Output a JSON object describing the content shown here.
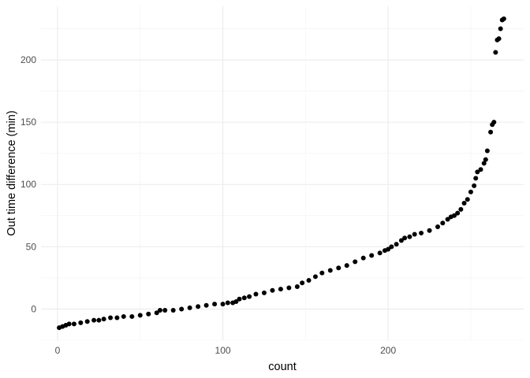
{
  "chart_data": {
    "type": "scatter",
    "title": "",
    "xlabel": "count",
    "ylabel": "Out time difference (min)",
    "xlim": [
      -10,
      282
    ],
    "ylim": [
      -25,
      243
    ],
    "x_ticks": [
      0,
      100,
      200
    ],
    "y_ticks": [
      0,
      50,
      100,
      150,
      200
    ],
    "x_tick_labels": [
      "0",
      "100",
      "200"
    ],
    "y_tick_labels": [
      "0",
      "50",
      "100",
      "150",
      "200"
    ],
    "grid": true,
    "legend": "none",
    "point_color": "#000000",
    "series": [
      {
        "x": [
          1,
          3,
          5,
          7,
          10,
          14,
          18,
          22,
          25,
          28,
          32,
          36,
          40,
          45,
          50,
          55,
          60,
          62,
          65,
          70,
          75,
          80,
          85,
          90,
          95,
          100,
          103,
          106,
          108,
          110,
          113,
          116,
          120,
          125,
          130,
          135,
          140,
          145,
          148,
          152,
          156,
          160,
          165,
          170,
          175,
          180,
          185,
          190,
          195,
          198,
          200,
          202,
          205,
          208,
          210,
          213,
          216,
          220,
          225,
          230,
          233,
          236,
          238,
          240,
          242,
          244,
          246,
          248,
          250,
          252,
          253,
          254,
          256,
          258,
          259,
          260,
          262,
          263,
          264,
          265,
          266,
          267,
          268,
          269,
          270
        ],
        "y": [
          -15,
          -14,
          -13,
          -12,
          -12,
          -11,
          -10,
          -9,
          -9,
          -8,
          -7,
          -7,
          -6,
          -6,
          -5,
          -4,
          -3,
          -1,
          -1,
          -1,
          0,
          1,
          2,
          3,
          4,
          4,
          5,
          5,
          6,
          8,
          9,
          10,
          12,
          13,
          15,
          16,
          17,
          18,
          21,
          23,
          26,
          29,
          31,
          33,
          35,
          38,
          41,
          43,
          45,
          47,
          48,
          50,
          52,
          55,
          57,
          58,
          60,
          61,
          63,
          66,
          69,
          72,
          74,
          75,
          77,
          80,
          85,
          88,
          94,
          99,
          105,
          110,
          112,
          117,
          120,
          127,
          142,
          148,
          150,
          206,
          216,
          217,
          225,
          232,
          233
        ]
      }
    ]
  }
}
